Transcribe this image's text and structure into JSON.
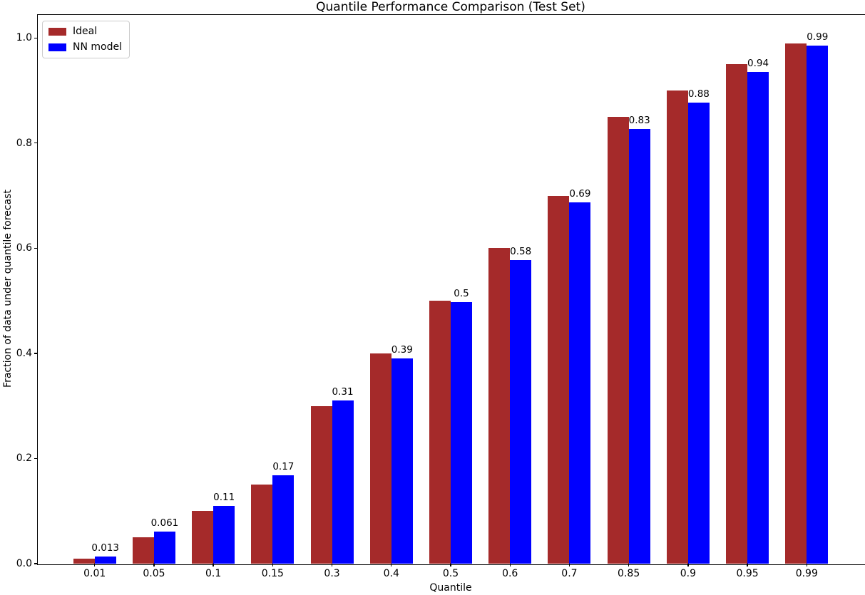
{
  "chart_data": {
    "type": "bar",
    "title": "Quantile Performance Comparison (Test Set)",
    "xlabel": "Quantile",
    "ylabel": "Fraction of data under quantile forecast",
    "categories": [
      "0.01",
      "0.05",
      "0.1",
      "0.15",
      "0.3",
      "0.4",
      "0.5",
      "0.6",
      "0.7",
      "0.85",
      "0.9",
      "0.95",
      "0.99"
    ],
    "series": [
      {
        "name": "Ideal",
        "color": "#a52a2a",
        "values": [
          0.01,
          0.05,
          0.1,
          0.15,
          0.3,
          0.4,
          0.5,
          0.6,
          0.7,
          0.85,
          0.9,
          0.95,
          0.99
        ]
      },
      {
        "name": "NN model",
        "color": "#0000ff",
        "values": [
          0.013,
          0.061,
          0.11,
          0.168,
          0.31,
          0.39,
          0.497,
          0.578,
          0.687,
          0.827,
          0.877,
          0.935,
          0.985
        ],
        "labels": [
          "0.013",
          "0.061",
          "0.11",
          "0.17",
          "0.31",
          "0.39",
          "0.5",
          "0.58",
          "0.69",
          "0.83",
          "0.88",
          "0.94",
          "0.99"
        ]
      }
    ],
    "yticks": [
      0.0,
      0.2,
      0.4,
      0.6,
      0.8,
      1.0
    ],
    "ytick_labels": [
      "0.0",
      "0.2",
      "0.4",
      "0.6",
      "0.8",
      "1.0"
    ],
    "ylim": [
      0,
      1.045
    ],
    "grid": false,
    "legend_position": "upper left",
    "value_labels_on": "NN model",
    "colors": {
      "ideal": "#a52a2a",
      "nn_model": "#0000ff",
      "spine": "#000000",
      "text": "#000000"
    }
  }
}
